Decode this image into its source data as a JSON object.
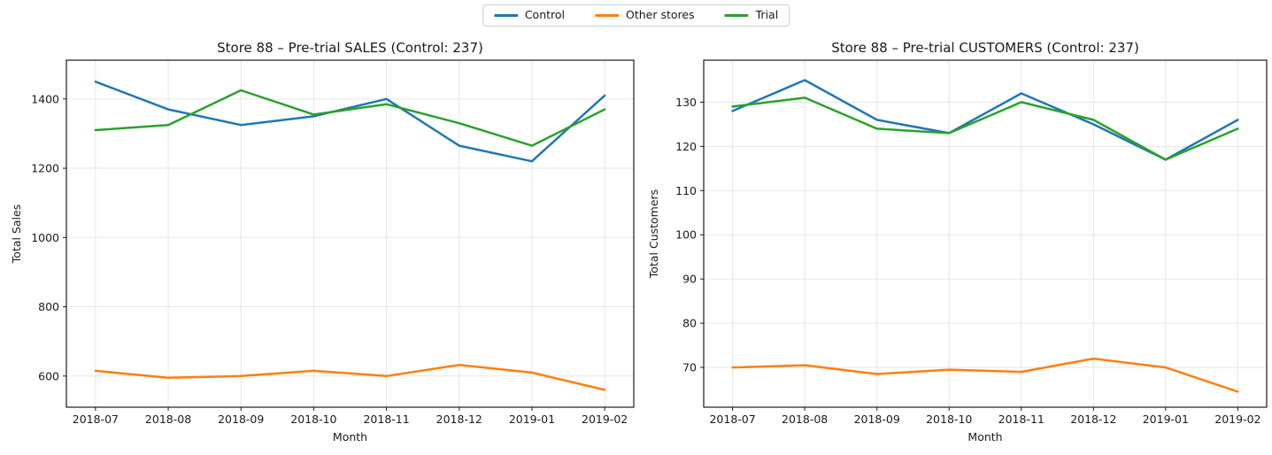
{
  "legend": {
    "items": [
      {
        "label": "Control",
        "color": "#1f77b4"
      },
      {
        "label": "Other stores",
        "color": "#ff7f0e"
      },
      {
        "label": "Trial",
        "color": "#2ca02c"
      }
    ]
  },
  "colors": {
    "control": "#1f77b4",
    "other_stores": "#ff7f0e",
    "trial": "#2ca02c",
    "grid": "#e6e6e6",
    "spine": "#1a1a1a",
    "text": "#1a1a1a"
  },
  "chart_data": [
    {
      "type": "line",
      "title": "Store 88 – Pre-trial SALES (Control: 237)",
      "xlabel": "Month",
      "ylabel": "Total Sales",
      "categories": [
        "2018-07",
        "2018-08",
        "2018-09",
        "2018-10",
        "2018-11",
        "2018-12",
        "2019-01",
        "2019-02"
      ],
      "series": [
        {
          "name": "Control",
          "color": "#1f77b4",
          "values": [
            1450,
            1370,
            1325,
            1350,
            1400,
            1265,
            1220,
            1410
          ]
        },
        {
          "name": "Other stores",
          "color": "#ff7f0e",
          "values": [
            615,
            595,
            600,
            615,
            600,
            632,
            610,
            560
          ]
        },
        {
          "name": "Trial",
          "color": "#2ca02c",
          "values": [
            1310,
            1325,
            1425,
            1355,
            1385,
            1330,
            1265,
            1370
          ]
        }
      ],
      "yticks": [
        600,
        800,
        1000,
        1200,
        1400
      ],
      "ylim": [
        510,
        1512
      ],
      "grid": true,
      "legend_position": "figure-top-center"
    },
    {
      "type": "line",
      "title": "Store 88 – Pre-trial CUSTOMERS (Control: 237)",
      "xlabel": "Month",
      "ylabel": "Total Customers",
      "categories": [
        "2018-07",
        "2018-08",
        "2018-09",
        "2018-10",
        "2018-11",
        "2018-12",
        "2019-01",
        "2019-02"
      ],
      "series": [
        {
          "name": "Control",
          "color": "#1f77b4",
          "values": [
            128,
            135,
            126,
            123,
            132,
            125,
            117,
            126
          ]
        },
        {
          "name": "Other stores",
          "color": "#ff7f0e",
          "values": [
            70,
            70.5,
            68.5,
            69.5,
            69,
            72,
            70,
            64.5
          ]
        },
        {
          "name": "Trial",
          "color": "#2ca02c",
          "values": [
            129,
            131,
            124,
            123,
            130,
            126,
            117,
            124
          ]
        }
      ],
      "yticks": [
        70,
        80,
        90,
        100,
        110,
        120,
        130
      ],
      "ylim": [
        61,
        139.5
      ],
      "grid": true,
      "legend_position": "figure-top-center"
    }
  ]
}
